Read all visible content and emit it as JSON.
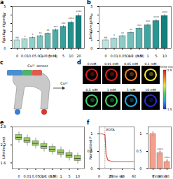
{
  "chart_data": [
    {
      "panel": "a",
      "type": "bar",
      "categories": [
        "0",
        "0.01",
        "0.05",
        "0.1",
        "0.5",
        "1",
        "5",
        "10",
        "20"
      ],
      "values": [
        1.0,
        1.1,
        1.3,
        1.5,
        1.8,
        2.2,
        2.6,
        3.1,
        3.9
      ],
      "errors": [
        0.05,
        0.08,
        0.1,
        0.1,
        0.12,
        0.15,
        0.15,
        0.2,
        0.25
      ],
      "annotations": [
        "ns",
        "*",
        "*",
        "**",
        "**",
        "***",
        "***",
        "****",
        "****"
      ],
      "colors": [
        "#bfe3df",
        "#a9d9d4",
        "#92cec9",
        "#7bc3be",
        "#63b8b3",
        "#4cada8",
        "#36a19c",
        "#23928d",
        "#13807c"
      ],
      "xlabel": "Cu²⁺ (mM)",
      "ylabel": "Relative intensity",
      "ylim": [
        0,
        5
      ],
      "yticks": [
        0,
        1,
        2,
        3,
        4,
        5
      ]
    },
    {
      "panel": "b",
      "type": "bar",
      "categories": [
        "0",
        "0.01",
        "0.05",
        "0.1",
        "0.5",
        "1",
        "5",
        "10"
      ],
      "values": [
        1.0,
        1.2,
        1.5,
        1.9,
        2.4,
        2.8,
        3.3,
        3.9
      ],
      "errors": [
        0.05,
        0.08,
        0.1,
        0.12,
        0.12,
        0.15,
        0.18,
        0.2
      ],
      "annotations": [
        "ns",
        "*",
        "**",
        "**",
        "***",
        "***",
        "****",
        "****"
      ],
      "colors": [
        "#bfe3df",
        "#a6d7d2",
        "#8ccbc6",
        "#72bfba",
        "#58b2ad",
        "#3fa5a0",
        "#289793",
        "#13807c"
      ],
      "xlabel": "Cu²⁺ (mM)",
      "ylabel": "Relative ratio",
      "ylim": [
        0,
        5
      ],
      "yticks": [
        0,
        1,
        2,
        3,
        4,
        5
      ]
    },
    {
      "panel": "e",
      "type": "box",
      "categories": [
        "0",
        "0.01",
        "0.05",
        "0.1",
        "0.5",
        "1",
        "5",
        "10"
      ],
      "medians": [
        2.45,
        2.35,
        2.25,
        2.15,
        2.05,
        1.95,
        1.85,
        1.75
      ],
      "q1": [
        2.37,
        2.27,
        2.17,
        2.07,
        1.97,
        1.87,
        1.77,
        1.67
      ],
      "q3": [
        2.53,
        2.43,
        2.33,
        2.23,
        2.13,
        2.03,
        1.93,
        1.83
      ],
      "whisker_low": [
        2.27,
        2.17,
        2.07,
        1.97,
        1.87,
        1.77,
        1.67,
        1.57
      ],
      "whisker_high": [
        2.63,
        2.53,
        2.43,
        2.33,
        2.23,
        2.13,
        2.03,
        1.93
      ],
      "color": "#9ccc65",
      "xlabel": "Cu²⁺ (mM)",
      "ylabel": "Lifetime (ns)",
      "ylim": [
        1.4,
        2.8
      ],
      "yticks": [
        1.6,
        2.2,
        2.8
      ]
    },
    {
      "panel": "f",
      "type": "line",
      "x": [
        0,
        5,
        10,
        12,
        15,
        20,
        25,
        30,
        40,
        50,
        60
      ],
      "values": [
        1.0,
        1.0,
        0.98,
        0.4,
        0.25,
        0.22,
        0.21,
        0.2,
        0.2,
        0.2,
        0.2
      ],
      "color": "#e0463f",
      "annotation": {
        "text": "EDTA",
        "x": 10
      },
      "xlabel": "Time (s)",
      "ylabel": "Normalized F",
      "xlim": [
        0,
        60
      ],
      "xticks": [
        0,
        20,
        40,
        60
      ],
      "ylim": [
        0,
        1.2
      ],
      "yticks": [
        0,
        0.5,
        1
      ]
    },
    {
      "type": "bar",
      "categories": [
        "0",
        "30",
        "60"
      ],
      "values": [
        1.0,
        0.45,
        0.2
      ],
      "points": [
        [
          0.95,
          1.0,
          1.05,
          0.98
        ],
        [
          0.4,
          0.45,
          0.5,
          0.47
        ],
        [
          0.15,
          0.2,
          0.25,
          0.22
        ]
      ],
      "annotations": [
        null,
        "****",
        "****"
      ],
      "color": "#f4a08c",
      "xlabel": "Time (s)",
      "ylim": [
        0,
        1.2
      ],
      "yticks": [
        0,
        0.5,
        1
      ]
    }
  ],
  "diagram": {
    "panel": "c",
    "labels": [
      "Cu²⁺ sensor",
      "Cu²⁺"
    ]
  },
  "images": {
    "panel": "d",
    "labels": [
      "0 mM",
      "0.01 mM",
      "0.05 mM",
      "0.1 mM",
      "0.5 mM",
      "1 mM",
      "5 mM",
      "10 mM"
    ],
    "colorbar": {
      "label": "Lifetime (ns)",
      "range": [
        1.5,
        2.5
      ],
      "ticks": [
        1.5,
        2.5
      ]
    }
  }
}
